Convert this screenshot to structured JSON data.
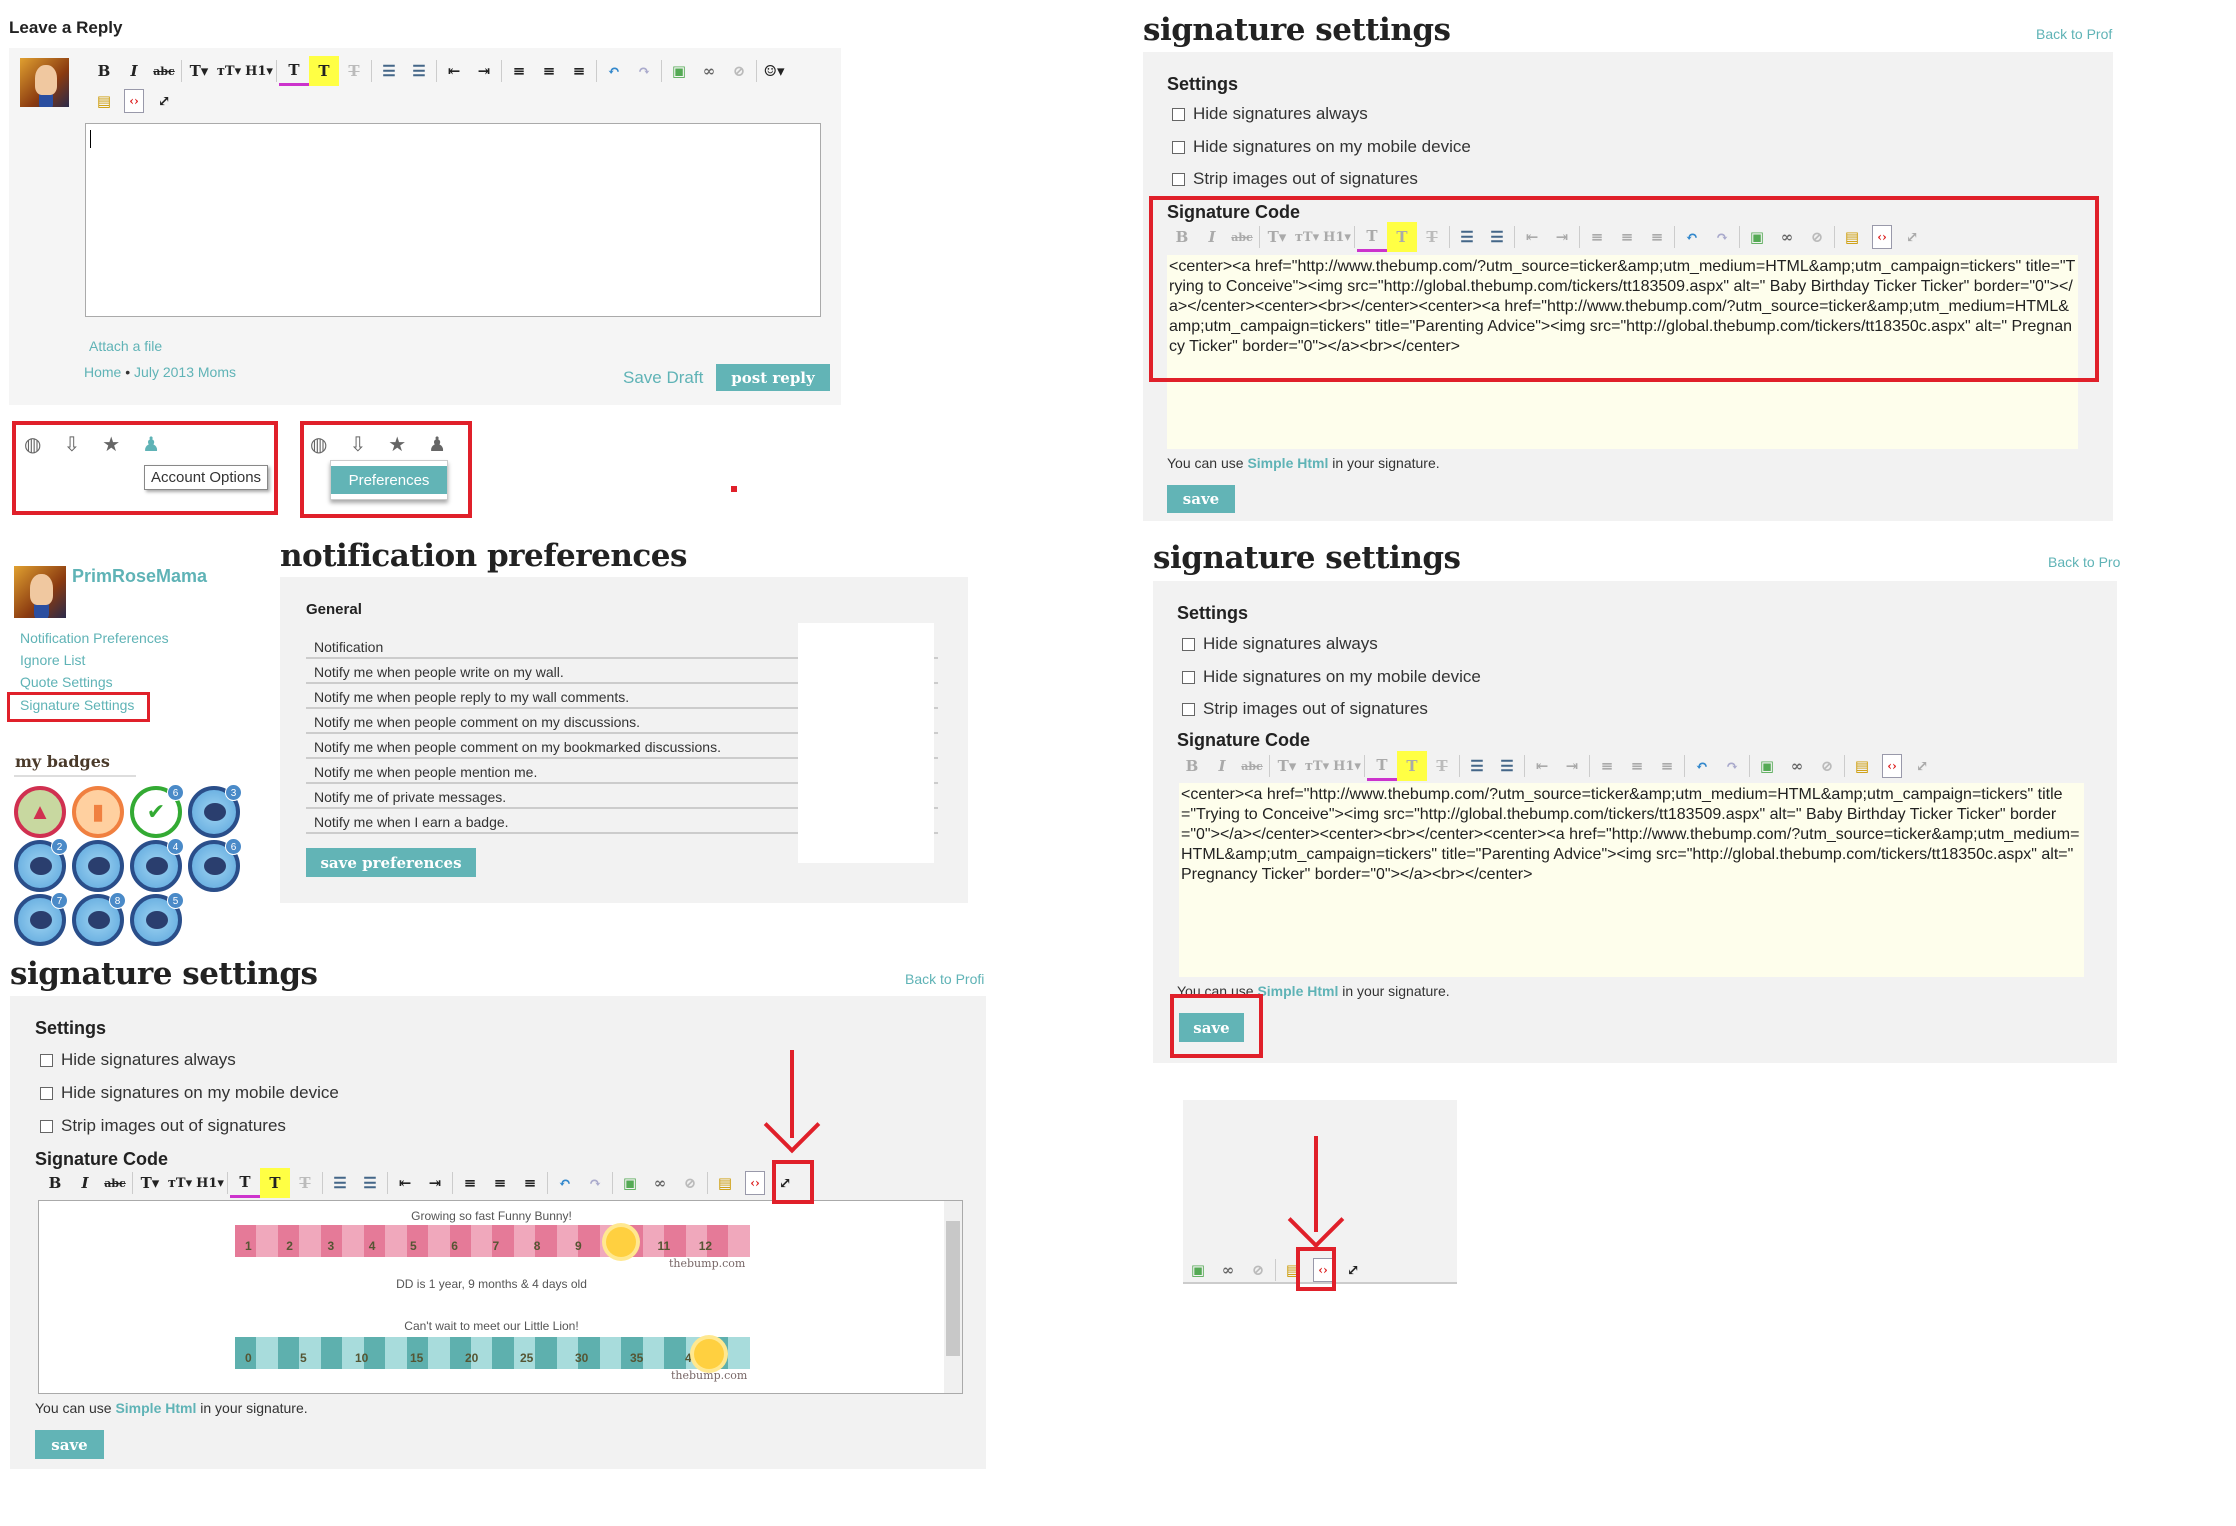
{
  "reply": {
    "heading": "Leave a Reply",
    "attach": "Attach a file",
    "breadcrumb_home": "Home",
    "breadcrumb_sep": "•",
    "breadcrumb_group": "July 2013 Moms",
    "save_draft": "Save Draft",
    "post_reply": "post reply"
  },
  "menus": {
    "tooltip_account": "Account Options",
    "dropdown_preferences": "Preferences"
  },
  "profile": {
    "username": "PrimRoseMama",
    "links": [
      "Notification Preferences",
      "Ignore List",
      "Quote Settings",
      "Signature Settings"
    ],
    "badges_heading": "my badges",
    "badges": [
      {
        "type": "birthday-cake",
        "count": ""
      },
      {
        "type": "food",
        "count": ""
      },
      {
        "type": "checkmark",
        "count": "6"
      },
      {
        "type": "comment",
        "count": "3"
      },
      {
        "type": "comment",
        "count": "2"
      },
      {
        "type": "comment",
        "count": ""
      },
      {
        "type": "comment",
        "count": "4"
      },
      {
        "type": "comment",
        "count": "6"
      },
      {
        "type": "comment",
        "count": "7"
      },
      {
        "type": "comment",
        "count": "8"
      },
      {
        "type": "comment",
        "count": "5"
      }
    ]
  },
  "notifications": {
    "title": "notification preferences",
    "section": "General",
    "rows": [
      "Notification",
      "Notify me when people write on my wall.",
      "Notify me when people reply to my wall comments.",
      "Notify me when people comment on my discussions.",
      "Notify me when people comment on my bookmarked discussions.",
      "Notify me when people mention me.",
      "Notify me of private messages.",
      "Notify me when I earn a badge."
    ],
    "save": "save preferences"
  },
  "signature": {
    "title": "signature settings",
    "back_top": "Back to Prof",
    "back_bottom_left": "Back to Profi",
    "back_mid": "Back to Pro",
    "settings_heading": "Settings",
    "options": [
      "Hide signatures always",
      "Hide signatures on my mobile device",
      "Strip images out of signatures"
    ],
    "code_heading": "Signature Code",
    "code_value": "<center><a href=\"http://www.thebump.com/?utm_source=ticker&amp;utm_medium=HTML&amp;utm_campaign=tickers\" title=\"Trying to Conceive\"><img src=\"http://global.thebump.com/tickers/tt183509.aspx\" alt=\" Baby Birthday Ticker Ticker\" border=\"0\"></a></center><center><br></center><center><a href=\"http://www.thebump.com/?utm_source=ticker&amp;utm_medium=HTML&amp;utm_campaign=tickers\" title=\"Parenting Advice\"><img src=\"http://global.thebump.com/tickers/tt18350c.aspx\" alt=\" Pregnancy Ticker\" border=\"0\"></a><br></center>",
    "hint_prefix": "You can use",
    "hint_link": "Simple Html",
    "hint_suffix": "in your signature.",
    "save": "save",
    "preview": {
      "ticker1_caption": "Growing so fast Funny Bunny!",
      "ticker1_labels": [
        "1",
        "2",
        "3",
        "4",
        "5",
        "6",
        "7",
        "8",
        "9",
        "10",
        "11",
        "12"
      ],
      "ticker1_progress": 0.75,
      "age_text": "DD is 1 year, 9 months & 4 days old",
      "ticker2_caption": "Can't wait to meet our Little Lion!",
      "ticker2_labels": [
        "0",
        "5",
        "10",
        "15",
        "20",
        "25",
        "30",
        "35",
        "40"
      ],
      "ticker2_progress": 0.92,
      "watermark": "thebump.com"
    }
  },
  "toolbar": [
    "bold",
    "italic",
    "strikethrough",
    "sep",
    "font-family",
    "font-size",
    "heading",
    "sep",
    "text-color",
    "highlight",
    "clear-format",
    "sep",
    "bullet-list",
    "numbered-list",
    "sep",
    "outdent",
    "indent",
    "sep",
    "align-left",
    "align-center",
    "align-right",
    "sep",
    "undo",
    "redo",
    "sep",
    "insert-image",
    "insert-link",
    "unlink",
    "sep",
    "paste-text",
    "source-code",
    "fullscreen"
  ],
  "reply_toolbar_extra": "emoji",
  "colors": {
    "accent": "#62b4b6",
    "highlight_red": "#e0202a",
    "panel": "#f2f2f2",
    "code_bg": "#fefeec"
  }
}
